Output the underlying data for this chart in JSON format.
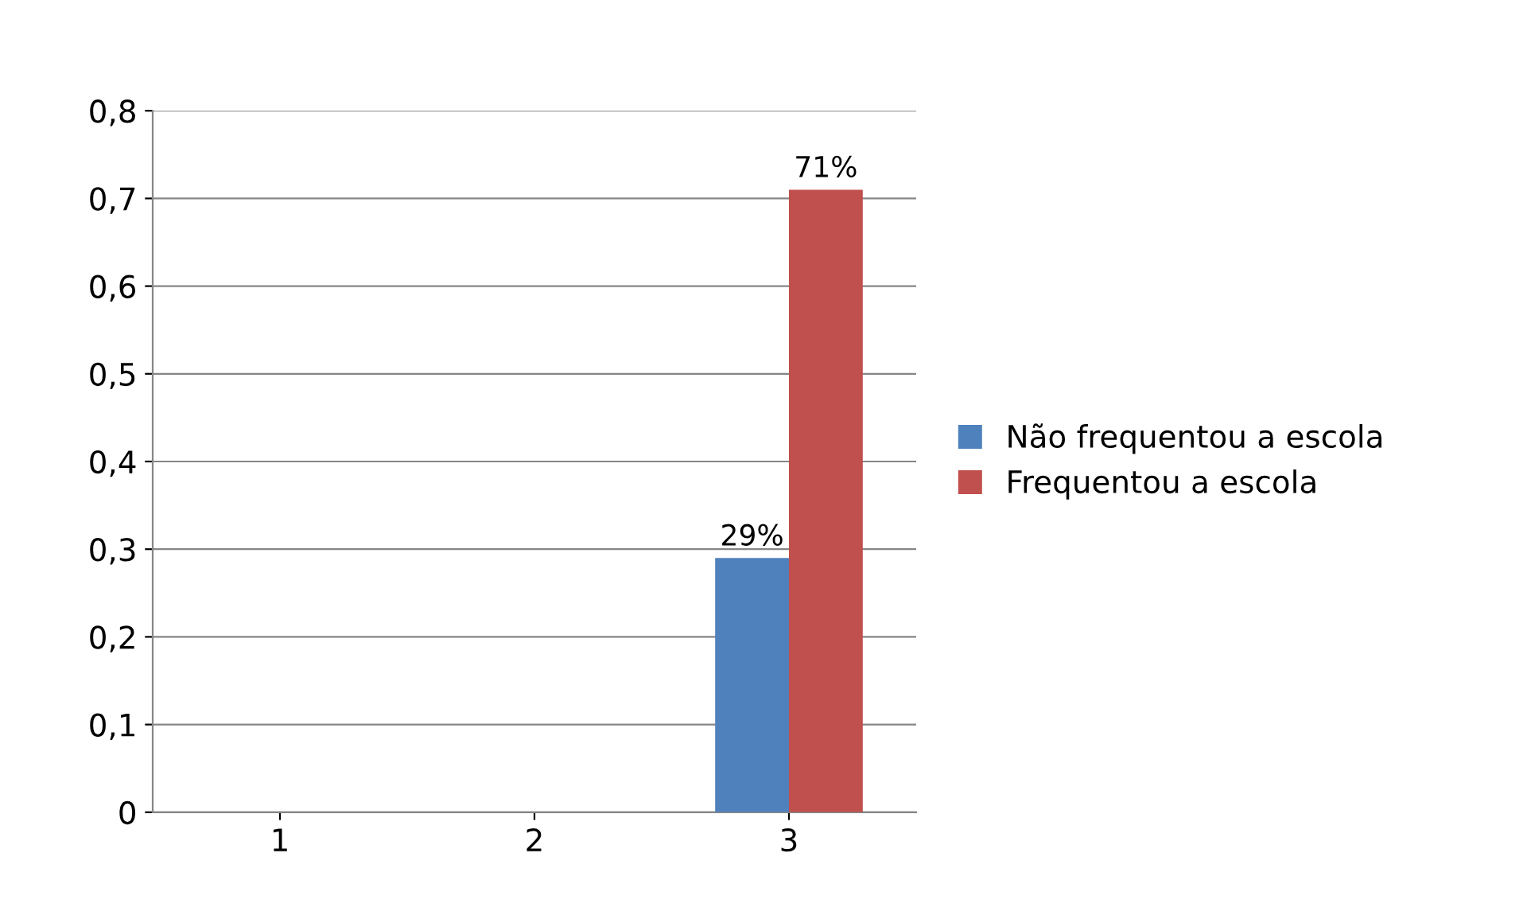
{
  "chart_data": {
    "type": "bar",
    "categories": [
      "1",
      "2",
      "3"
    ],
    "series": [
      {
        "name": "Não frequentou a escola",
        "color": "#4f81bd",
        "values": [
          null,
          null,
          0.29
        ],
        "value_labels": [
          null,
          null,
          "29%"
        ]
      },
      {
        "name": "Frequentou a escola",
        "color": "#c0504d",
        "values": [
          null,
          null,
          0.71
        ],
        "value_labels": [
          null,
          null,
          "71%"
        ]
      }
    ],
    "ylim": [
      0,
      0.8
    ],
    "yticks": [
      0,
      {
        "value": 0.1,
        "label": "0,1"
      },
      {
        "value": 0.2,
        "label": "0,2"
      },
      {
        "value": 0.3,
        "label": "0,3"
      },
      {
        "value": 0.4,
        "label": "0,4"
      },
      {
        "value": 0.5,
        "label": "0,5"
      },
      {
        "value": 0.6,
        "label": "0,6"
      },
      {
        "value": 0.7,
        "label": "0,7"
      },
      {
        "value": 0.8,
        "label": "0,8"
      }
    ],
    "grid": "y",
    "legend": "right"
  }
}
